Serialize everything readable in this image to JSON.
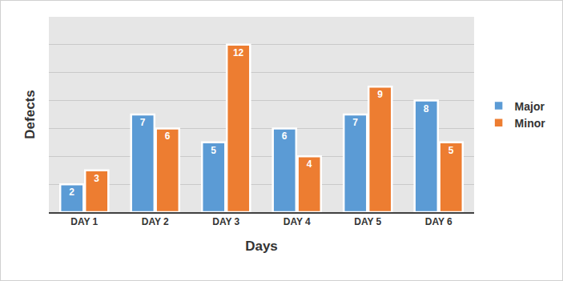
{
  "chart_data": {
    "type": "bar",
    "x_label": "Days",
    "y_label": "Defects",
    "categories": [
      "DAY 1",
      "DAY 2",
      "DAY 3",
      "DAY 4",
      "DAY 5",
      "DAY 6"
    ],
    "series": [
      {
        "name": "Major",
        "color": "#5b9bd5",
        "values": [
          2,
          7,
          5,
          6,
          7,
          8
        ]
      },
      {
        "name": "Minor",
        "color": "#ed7d31",
        "values": [
          3,
          6,
          12,
          4,
          9,
          5
        ]
      }
    ],
    "ylim": [
      0,
      14
    ],
    "yticks": [
      0,
      2,
      4,
      6,
      8,
      10,
      12,
      14
    ],
    "grid": true,
    "legend": "right",
    "data_labels": true,
    "tick_labels": "x"
  }
}
